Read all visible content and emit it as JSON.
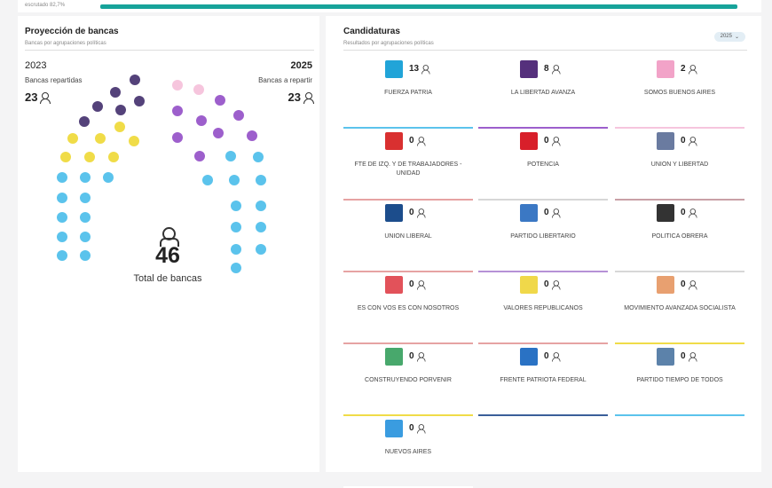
{
  "top": {
    "scrutiny_label": "escrutado 82,7%"
  },
  "projection": {
    "title": "Proyección de bancas",
    "subtitle": "Bancas por agrupaciones políticas",
    "left_year": "2023",
    "left_label": "Bancas repartidas",
    "left_seats": "23",
    "right_year": "2025",
    "right_label": "Bancas a repartir",
    "right_seats": "23",
    "total": "46",
    "total_label": "Total de bancas",
    "colors": {
      "purple_dark": "#54427a",
      "yellow": "#f0dc48",
      "blue": "#5bc3ec",
      "purple": "#9d5fcc",
      "pink": "#f6c5dd"
    }
  },
  "candidates": {
    "title": "Candidaturas",
    "subtitle": "Resultados por agrupaciones políticas",
    "year_select": "2025",
    "items": [
      {
        "name": "FUERZA PATRIA",
        "count": "13",
        "color": "#5bc3ec",
        "logo": "#21a4d8"
      },
      {
        "name": "LA LIBERTAD AVANZA",
        "count": "8",
        "color": "#9d5fcc",
        "logo": "#55307c"
      },
      {
        "name": "SOMOS BUENOS AIRES",
        "count": "2",
        "color": "#f6c5dd",
        "logo": "#f2a3c8"
      },
      {
        "name": "FTE DE IZQ. Y DE TRABAJADORES - UNIDAD",
        "count": "0",
        "color": "#e6a3a3",
        "logo": "#d93030"
      },
      {
        "name": "POTENCIA",
        "count": "0",
        "color": "#d7d7d7",
        "logo": "#d81f2a"
      },
      {
        "name": "UNION Y LIBERTAD",
        "count": "0",
        "color": "#c9a0a6",
        "logo": "#6a7ba0"
      },
      {
        "name": "UNION LIBERAL",
        "count": "0",
        "color": "#e6a3a3",
        "logo": "#1c4d8c"
      },
      {
        "name": "PARTIDO LIBERTARIO",
        "count": "0",
        "color": "#b691d6",
        "logo": "#3b78c4"
      },
      {
        "name": "POLITICA OBRERA",
        "count": "0",
        "color": "#d7d7d7",
        "logo": "#333333"
      },
      {
        "name": "ES CON VOS ES CON NOSOTROS",
        "count": "0",
        "color": "#e6a3a3",
        "logo": "#e2525a"
      },
      {
        "name": "VALORES REPUBLICANOS",
        "count": "0",
        "color": "#e6a3a3",
        "logo": "#f0d84a"
      },
      {
        "name": "MOVIMIENTO AVANZADA SOCIALISTA",
        "count": "0",
        "color": "#f0dc48",
        "logo": "#e8a070"
      },
      {
        "name": "CONSTRUYENDO PORVENIR",
        "count": "0",
        "color": "#f0dc48",
        "logo": "#48a86c"
      },
      {
        "name": "FRENTE PATRIOTA FEDERAL",
        "count": "0",
        "color": "#3a5f99",
        "logo": "#2a72c4"
      },
      {
        "name": "PARTIDO TIEMPO DE TODOS",
        "count": "0",
        "color": "#5bc3ec",
        "logo": "#5c82aa"
      },
      {
        "name": "NUEVOS AIRES",
        "count": "0",
        "color": "#ffffff",
        "logo": "#3a9ce0"
      }
    ]
  }
}
